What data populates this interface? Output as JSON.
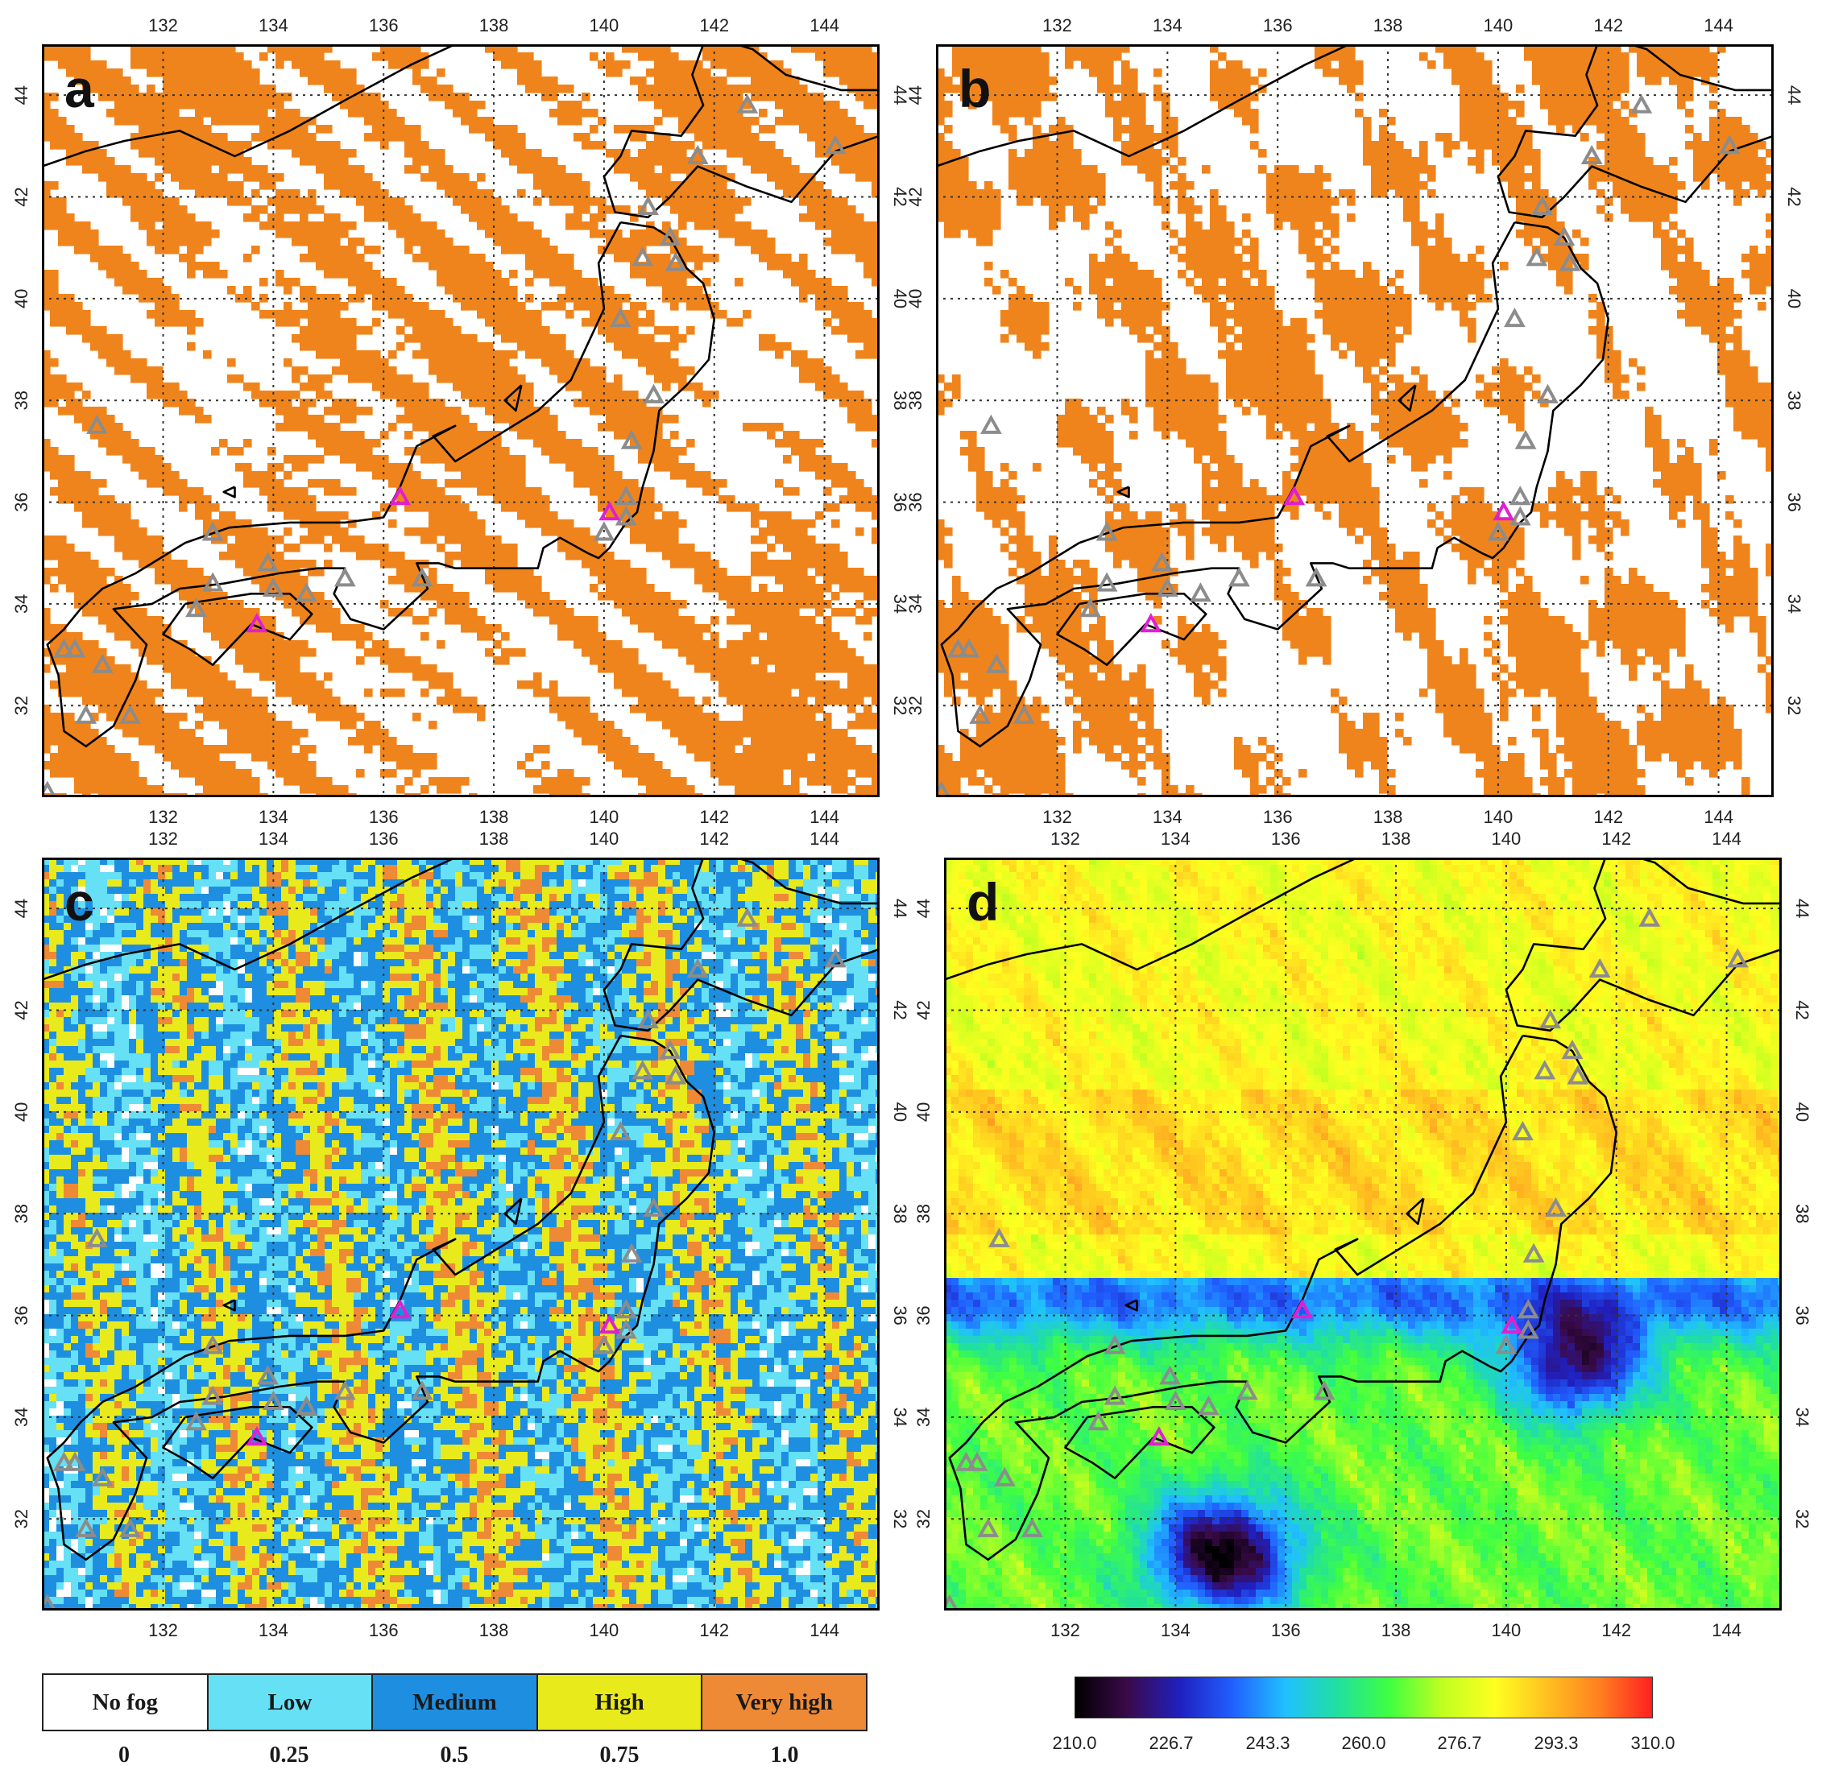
{
  "panels": [
    {
      "id": "a",
      "letter": "a",
      "style": "binary"
    },
    {
      "id": "b",
      "letter": "b",
      "style": "binary"
    },
    {
      "id": "c",
      "letter": "c",
      "style": "prob"
    },
    {
      "id": "d",
      "letter": "d",
      "style": "temp"
    }
  ],
  "axes": {
    "lon_labels": [
      "132",
      "134",
      "136",
      "138",
      "140",
      "142",
      "144"
    ],
    "lat_labels": [
      "32",
      "34",
      "36",
      "38",
      "40",
      "42",
      "44"
    ],
    "lon_range": [
      129.8,
      145.0
    ],
    "lat_range": [
      30.2,
      45.0
    ]
  },
  "colors": {
    "fog_orange": "#f0841c",
    "no_fog": "#ffffff",
    "grid": "#333333",
    "coast": "#000000",
    "station_gray": "#8c8c8c",
    "station_magenta": "#e020d0"
  },
  "fog_legend": {
    "categories": [
      {
        "label": "No fog",
        "color": "#ffffff"
      },
      {
        "label": "Low",
        "color": "#66e0f5"
      },
      {
        "label": "Medium",
        "color": "#1e8fe0"
      },
      {
        "label": "High",
        "color": "#e8ea1c"
      },
      {
        "label": "Very high",
        "color": "#ee8a36"
      }
    ],
    "values": [
      "0",
      "0.25",
      "0.5",
      "0.75",
      "1.0"
    ]
  },
  "temp_legend": {
    "ticks": [
      "210.0",
      "226.7",
      "243.3",
      "260.0",
      "276.7",
      "293.3",
      "310.0"
    ],
    "range": [
      210,
      310
    ],
    "colors": [
      "#000000",
      "#3a0a4a",
      "#2020c0",
      "#2060ff",
      "#20c0ff",
      "#20e0a0",
      "#40ff40",
      "#c0ff20",
      "#ffff20",
      "#ffc020",
      "#ff8020",
      "#ff2020"
    ]
  },
  "stations": {
    "gray": [
      [
        130.8,
        37.5
      ],
      [
        132.9,
        35.4
      ],
      [
        132.9,
        34.4
      ],
      [
        132.6,
        33.9
      ],
      [
        133.9,
        34.8
      ],
      [
        134.0,
        34.3
      ],
      [
        134.6,
        34.2
      ],
      [
        135.3,
        34.5
      ],
      [
        136.7,
        34.5
      ],
      [
        140.4,
        36.1
      ],
      [
        140.4,
        35.7
      ],
      [
        140.0,
        35.4
      ],
      [
        140.5,
        37.2
      ],
      [
        140.9,
        38.1
      ],
      [
        140.3,
        39.6
      ],
      [
        140.7,
        40.8
      ],
      [
        141.3,
        40.7
      ],
      [
        140.8,
        41.8
      ],
      [
        141.2,
        41.2
      ],
      [
        141.7,
        42.8
      ],
      [
        142.6,
        43.8
      ],
      [
        144.2,
        43.0
      ],
      [
        130.2,
        33.1
      ],
      [
        130.4,
        33.1
      ],
      [
        130.9,
        32.8
      ],
      [
        130.6,
        31.8
      ],
      [
        131.4,
        31.8
      ],
      [
        129.9,
        30.3
      ]
    ],
    "magenta": [
      [
        136.3,
        36.1
      ],
      [
        140.1,
        35.8
      ],
      [
        133.7,
        33.6
      ]
    ]
  },
  "coastline": [
    [
      [
        141.8,
        45.0
      ],
      [
        141.6,
        44.4
      ],
      [
        141.8,
        43.8
      ],
      [
        141.4,
        43.2
      ],
      [
        140.5,
        43.3
      ],
      [
        140.3,
        42.8
      ],
      [
        140.0,
        42.4
      ],
      [
        140.2,
        41.7
      ],
      [
        140.8,
        41.6
      ],
      [
        141.2,
        42.0
      ],
      [
        141.7,
        42.6
      ],
      [
        142.6,
        42.2
      ],
      [
        143.4,
        41.9
      ],
      [
        144.2,
        42.9
      ],
      [
        145.0,
        43.2
      ]
    ],
    [
      [
        145.0,
        44.1
      ],
      [
        144.3,
        44.1
      ],
      [
        143.3,
        44.4
      ],
      [
        142.7,
        44.9
      ],
      [
        142.4,
        45.0
      ]
    ],
    [
      [
        140.3,
        41.5
      ],
      [
        139.9,
        40.7
      ],
      [
        140.0,
        39.8
      ],
      [
        139.7,
        39.1
      ],
      [
        139.4,
        38.4
      ],
      [
        138.8,
        37.8
      ],
      [
        137.9,
        37.2
      ],
      [
        137.3,
        36.8
      ],
      [
        136.9,
        37.3
      ],
      [
        137.3,
        37.5
      ],
      [
        136.6,
        37.1
      ],
      [
        136.3,
        36.3
      ],
      [
        136.0,
        35.7
      ],
      [
        135.3,
        35.6
      ],
      [
        134.3,
        35.6
      ],
      [
        133.2,
        35.5
      ],
      [
        132.4,
        35.2
      ],
      [
        131.5,
        34.6
      ],
      [
        130.9,
        34.3
      ],
      [
        130.5,
        33.9
      ],
      [
        130.2,
        33.5
      ],
      [
        129.9,
        33.2
      ],
      [
        130.1,
        32.6
      ],
      [
        130.2,
        31.5
      ],
      [
        130.6,
        31.2
      ],
      [
        131.1,
        31.6
      ],
      [
        131.5,
        32.5
      ],
      [
        131.7,
        33.2
      ],
      [
        131.1,
        33.9
      ],
      [
        131.8,
        34.0
      ],
      [
        132.3,
        34.3
      ],
      [
        133.1,
        34.4
      ],
      [
        134.1,
        34.6
      ],
      [
        134.8,
        34.7
      ],
      [
        135.3,
        34.7
      ],
      [
        135.1,
        34.2
      ],
      [
        135.4,
        33.7
      ],
      [
        136.0,
        33.5
      ],
      [
        136.8,
        34.3
      ],
      [
        136.6,
        34.8
      ],
      [
        137.0,
        34.8
      ],
      [
        137.3,
        34.7
      ],
      [
        138.0,
        34.7
      ],
      [
        138.8,
        34.7
      ],
      [
        138.9,
        35.1
      ],
      [
        139.2,
        35.3
      ],
      [
        139.7,
        35.0
      ],
      [
        139.9,
        34.9
      ],
      [
        140.1,
        35.1
      ],
      [
        140.4,
        35.6
      ],
      [
        140.6,
        35.8
      ],
      [
        140.7,
        36.3
      ],
      [
        140.9,
        37.0
      ],
      [
        141.0,
        37.8
      ],
      [
        141.5,
        38.3
      ],
      [
        141.9,
        38.8
      ],
      [
        142.0,
        39.6
      ],
      [
        141.8,
        40.3
      ],
      [
        141.5,
        40.6
      ],
      [
        141.2,
        41.2
      ],
      [
        140.9,
        41.4
      ],
      [
        140.3,
        41.5
      ]
    ],
    [
      [
        132.4,
        34.0
      ],
      [
        133.0,
        34.1
      ],
      [
        133.6,
        34.2
      ],
      [
        134.3,
        34.2
      ],
      [
        134.7,
        33.8
      ],
      [
        134.3,
        33.3
      ],
      [
        133.6,
        33.6
      ],
      [
        132.9,
        32.8
      ],
      [
        132.5,
        33.1
      ],
      [
        132.0,
        33.4
      ],
      [
        132.4,
        34.0
      ]
    ],
    [
      [
        129.8,
        39.2
      ],
      [
        129.4,
        38.6
      ],
      [
        129.5,
        37.9
      ],
      [
        129.4,
        37.0
      ],
      [
        129.5,
        35.8
      ],
      [
        129.3,
        35.2
      ],
      [
        129.0,
        35.1
      ]
    ],
    [
      [
        129.8,
        42.6
      ],
      [
        130.6,
        42.9
      ],
      [
        131.3,
        43.1
      ],
      [
        132.3,
        43.3
      ],
      [
        133.3,
        42.8
      ],
      [
        134.3,
        43.3
      ],
      [
        135.3,
        43.9
      ],
      [
        136.5,
        44.6
      ],
      [
        137.3,
        45.0
      ]
    ],
    [
      [
        138.5,
        38.3
      ],
      [
        138.2,
        38.0
      ],
      [
        138.4,
        37.8
      ],
      [
        138.5,
        38.3
      ]
    ],
    [
      [
        133.3,
        36.3
      ],
      [
        133.1,
        36.2
      ],
      [
        133.3,
        36.1
      ],
      [
        133.3,
        36.3
      ]
    ]
  ]
}
